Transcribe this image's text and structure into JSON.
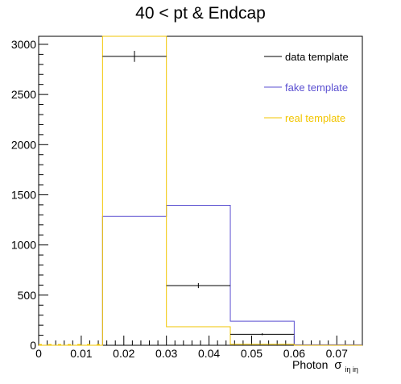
{
  "chart_data": {
    "type": "histogram",
    "title": "40 < pt  & Endcap",
    "xlabel": "Photon",
    "xlabel_symbol": "σ",
    "xlabel_subscript": "iη iη",
    "ylabel": "",
    "xlim": [
      0,
      0.076
    ],
    "ylim": [
      0,
      3080
    ],
    "xticks": [
      0,
      0.01,
      0.02,
      0.03,
      0.04,
      0.05,
      0.06,
      0.07
    ],
    "xtick_labels": [
      "0",
      "0.01",
      "0.02",
      "0.03",
      "0.04",
      "0.05",
      "0.06",
      "0.07"
    ],
    "yticks": [
      0,
      500,
      1000,
      1500,
      2000,
      2500,
      3000
    ],
    "ytick_labels": [
      "0",
      "500",
      "1000",
      "1500",
      "2000",
      "2500",
      "3000"
    ],
    "bin_edges": [
      0,
      0.015,
      0.03,
      0.045,
      0.06,
      0.076
    ],
    "grid": false,
    "legend_position": "top-right",
    "series": [
      {
        "name": "data template",
        "style": "points-with-errors",
        "color": "#000000",
        "points": [
          {
            "x": 0.0225,
            "y": 2880,
            "yerr": 55
          },
          {
            "x": 0.0375,
            "y": 595,
            "yerr": 25
          },
          {
            "x": 0.0525,
            "y": 110,
            "yerr": 10
          }
        ]
      },
      {
        "name": "fake template",
        "style": "step",
        "color": "#5a4fd1",
        "values": [
          0,
          1285,
          1395,
          240,
          5
        ]
      },
      {
        "name": "real template",
        "style": "step",
        "color": "#f2c500",
        "values": [
          0,
          3080,
          185,
          10,
          0
        ]
      }
    ]
  }
}
